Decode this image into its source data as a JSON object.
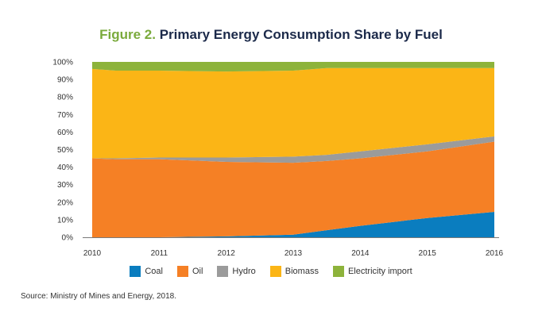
{
  "title_prefix": "Figure 2.",
  "title_text": "Primary Energy Consumption Share by Fuel",
  "source": "Source: Ministry of Mines and Energy, 2018.",
  "chart_data": {
    "type": "area",
    "stacked": true,
    "x": [
      2010,
      2010.35,
      2011,
      2012,
      2013,
      2013.5,
      2014,
      2015,
      2016
    ],
    "x_ticks": [
      "2010",
      "2011",
      "2012",
      "2013",
      "2014",
      "2015",
      "2016"
    ],
    "y_ticks": [
      "0%",
      "10%",
      "20%",
      "30%",
      "40%",
      "50%",
      "60%",
      "70%",
      "80%",
      "90%",
      "100%"
    ],
    "ylim": [
      0,
      100
    ],
    "series": [
      {
        "name": "Coal",
        "color": "#0a7dbf",
        "values": [
          0,
          0,
          0,
          0.5,
          1.5,
          4,
          6.5,
          11,
          14.5
        ]
      },
      {
        "name": "Oil",
        "color": "#f58025",
        "values": [
          45,
          44.5,
          44.5,
          42.5,
          41,
          39.5,
          38.5,
          38,
          40
        ]
      },
      {
        "name": "Hydro",
        "color": "#9b9b9b",
        "values": [
          0,
          0.5,
          1,
          2.5,
          3.5,
          3.5,
          4,
          4,
          3
        ]
      },
      {
        "name": "Biomass",
        "color": "#fbb516",
        "values": [
          51,
          50,
          49.5,
          49,
          49,
          49.5,
          47.5,
          43.5,
          39
        ]
      },
      {
        "name": "Electricity import",
        "color": "#8db33b",
        "values": [
          4,
          5,
          5,
          5.5,
          5,
          3.5,
          3.5,
          3.5,
          3.5
        ]
      }
    ]
  }
}
